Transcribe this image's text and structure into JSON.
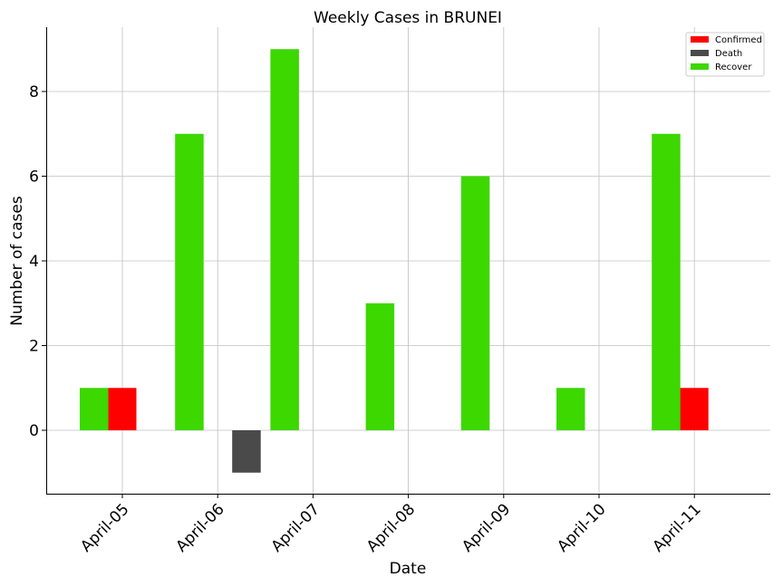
{
  "chart_data": {
    "type": "bar",
    "title": "Weekly Cases in BRUNEI",
    "xlabel": "Date",
    "ylabel": "Number of cases",
    "categories": [
      "April-05",
      "April-06",
      "April-07",
      "April-08",
      "April-09",
      "April-10",
      "April-11"
    ],
    "series": [
      {
        "name": "Confirmed",
        "color": "#ff0000",
        "values": [
          1,
          0,
          0,
          0,
          0,
          0,
          1
        ]
      },
      {
        "name": "Death",
        "color": "#4a4a4a",
        "values": [
          0,
          -1,
          0,
          0,
          0,
          0,
          0
        ]
      },
      {
        "name": "Recover",
        "color": "#3cd800",
        "values": [
          1,
          7,
          9,
          3,
          6,
          1,
          7
        ]
      }
    ],
    "ylim": [
      -1.5,
      9.5
    ],
    "yticks": [
      0,
      2,
      4,
      6,
      8
    ],
    "yticklabels": [
      "0",
      "2",
      "4",
      "6",
      "8"
    ],
    "grid": true,
    "legend_position": "top-right"
  }
}
